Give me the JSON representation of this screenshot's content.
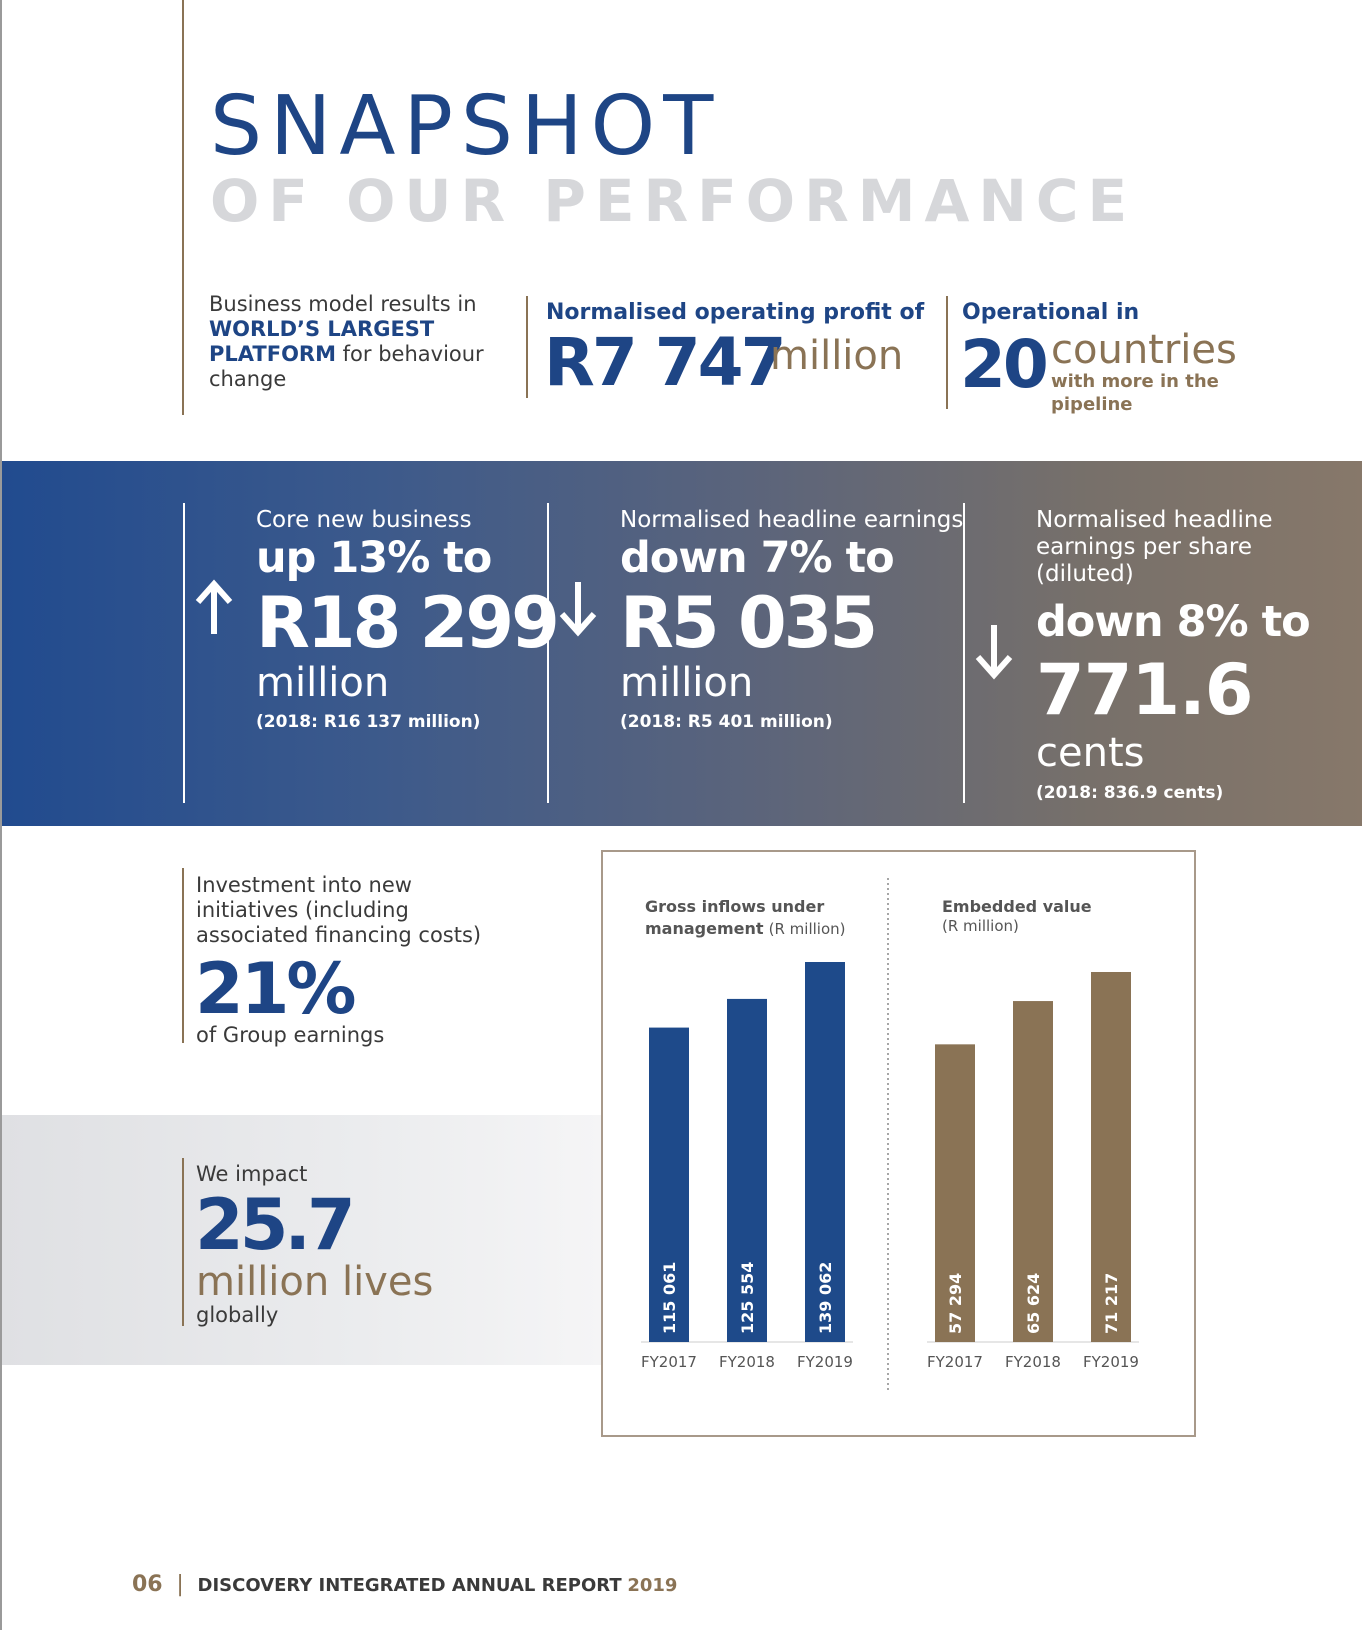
{
  "title": {
    "line1": "SNAPSHOT",
    "line2": "OF OUR PERFORMANCE"
  },
  "top": {
    "block1": {
      "line1": "Business model results in",
      "highlight1": "WORLD’S LARGEST",
      "highlight2": "PLATFORM",
      "line3_rest": " for behaviour",
      "line4": "change"
    },
    "block2": {
      "label": "Normalised operating profit of",
      "value": "R7 747",
      "unit": "million"
    },
    "block3": {
      "label": "Operational in",
      "value": "20",
      "unit": "countries",
      "note1": "with more in the",
      "note2": "pipeline"
    }
  },
  "band": {
    "col1": {
      "label": "Core new business",
      "change": "up 13% to",
      "value": "R18 299",
      "unit": "million",
      "prior": "(2018: R16 137 million)",
      "direction": "up"
    },
    "col2": {
      "label": "Normalised headline earnings",
      "change": "down 7% to",
      "value": "R5 035",
      "unit": "million",
      "prior": "(2018: R5 401 million)",
      "direction": "down"
    },
    "col3": {
      "label1": "Normalised headline",
      "label2": "earnings per share",
      "label3": "(diluted)",
      "change": "down 8% to",
      "value": "771.6",
      "unit": "cents",
      "prior": "(2018: 836.9 cents)",
      "direction": "down"
    }
  },
  "investment": {
    "line1": "Investment into new",
    "line2": "initiatives (including",
    "line3": "associated financing costs)",
    "value": "21%",
    "tail": "of Group earnings"
  },
  "impact": {
    "label": "We impact",
    "value": "25.7",
    "unit": "million lives",
    "tail": "globally"
  },
  "chart_data": [
    {
      "type": "bar",
      "title_bold1": "Gross inflows under",
      "title_bold2": "management",
      "title_unit": "(R million)",
      "categories": [
        "FY2017",
        "FY2018",
        "FY2019"
      ],
      "values": [
        115061,
        125554,
        139062
      ],
      "value_labels": [
        "115 061",
        "125 554",
        "139 062"
      ],
      "color": "#1e4a8a"
    },
    {
      "type": "bar",
      "title_bold1": "Embedded value",
      "title_unit": "(R million)",
      "categories": [
        "FY2017",
        "FY2018",
        "FY2019"
      ],
      "values": [
        57294,
        65624,
        71217
      ],
      "value_labels": [
        "57 294",
        "65 624",
        "71 217"
      ],
      "color": "#8a7355"
    }
  ],
  "footer": {
    "page": "06",
    "sep": "|",
    "report": "DISCOVERY INTEGRATED ANNUAL REPORT",
    "year": "2019"
  },
  "colors": {
    "brand_blue": "#1e4585",
    "brand_gold": "#8a7355",
    "title_grey": "#d6d7da"
  }
}
